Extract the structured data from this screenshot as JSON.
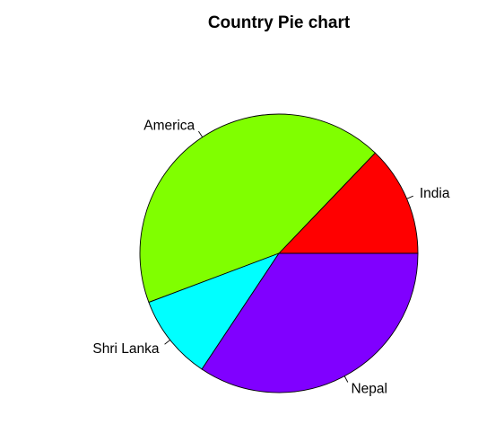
{
  "chart_data": {
    "type": "pie",
    "title": "Country Pie chart",
    "start_angle_deg": 0,
    "direction": "counterclockwise",
    "legend": "none",
    "slices": [
      {
        "label": "India",
        "value": 8.4,
        "color": "#FF0000"
      },
      {
        "label": "America",
        "value": 28.1,
        "color": "#80FF00"
      },
      {
        "label": "Shri Lanka",
        "value": 6.5,
        "color": "#00FFFF"
      },
      {
        "label": "Nepal",
        "value": 22.5,
        "color": "#8000FF"
      }
    ]
  }
}
